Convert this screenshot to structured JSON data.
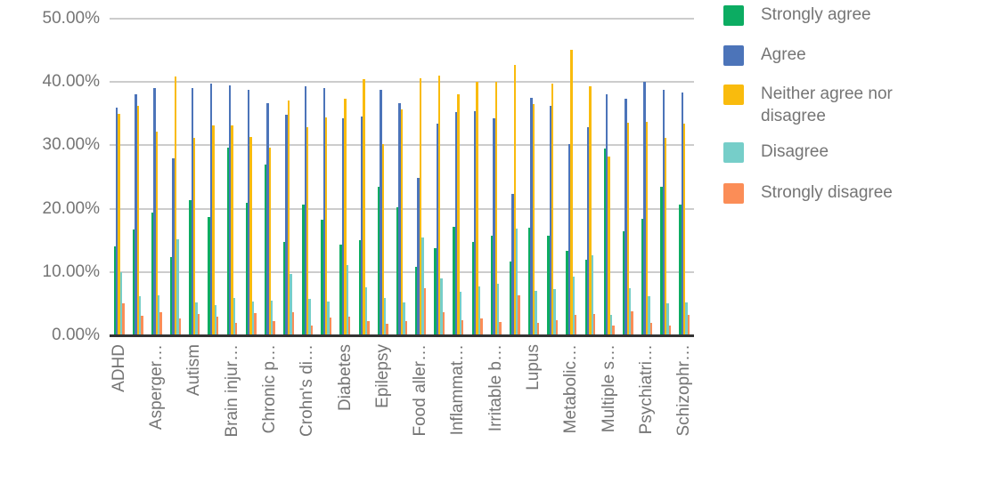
{
  "chart_data": {
    "type": "bar",
    "title": "",
    "legend_position": "right",
    "x_label_rotation": -90,
    "grid": true,
    "background_color": "#ffffff",
    "axis_text_color": "#757575",
    "gridline_color": "#cccccc",
    "baseline_color": "#333333",
    "y_axis": {
      "min": 0,
      "max": 50,
      "ticks": [
        "0.00%",
        "10.00%",
        "20.00%",
        "30.00%",
        "40.00%",
        "50.00%"
      ],
      "tick_values": [
        0,
        10,
        20,
        30,
        40,
        50
      ]
    },
    "series": [
      {
        "name": "Strongly agree",
        "color": "#0CAC62"
      },
      {
        "name": "Agree",
        "color": "#4C74B9"
      },
      {
        "name": "Neither agree nor disagree",
        "color": "#F9BB0D"
      },
      {
        "name": "Disagree",
        "color": "#76CEC9"
      },
      {
        "name": "Strongly disagree",
        "color": "#FB8D57"
      }
    ],
    "categories": [
      {
        "label": "ADHD",
        "values": [
          14.0,
          36.0,
          35.0,
          10.0,
          5.1
        ]
      },
      {
        "label": "",
        "values": [
          16.7,
          38.1,
          36.3,
          6.2,
          3.1
        ]
      },
      {
        "label": "Asperger…",
        "values": [
          19.4,
          39.0,
          32.1,
          6.3,
          3.6
        ]
      },
      {
        "label": "",
        "values": [
          12.3,
          28.0,
          40.9,
          15.2,
          2.7
        ]
      },
      {
        "label": "Autism",
        "values": [
          21.3,
          39.0,
          31.2,
          5.2,
          3.4
        ]
      },
      {
        "label": "",
        "values": [
          18.7,
          39.7,
          33.1,
          4.8,
          3.0
        ]
      },
      {
        "label": "Brain injur…",
        "values": [
          29.7,
          39.5,
          33.2,
          5.9,
          2.0
        ]
      },
      {
        "label": "",
        "values": [
          20.9,
          38.8,
          31.3,
          5.3,
          3.5
        ]
      },
      {
        "label": "Chronic p…",
        "values": [
          27.0,
          36.7,
          29.6,
          5.5,
          2.2
        ]
      },
      {
        "label": "",
        "values": [
          14.8,
          34.9,
          37.1,
          9.7,
          3.6
        ]
      },
      {
        "label": "Crohn's di…",
        "values": [
          20.7,
          39.3,
          32.9,
          5.8,
          1.5
        ]
      },
      {
        "label": "",
        "values": [
          18.2,
          39.1,
          34.4,
          5.4,
          2.8
        ]
      },
      {
        "label": "Diabetes",
        "values": [
          14.3,
          34.3,
          37.4,
          11.1,
          3.0
        ]
      },
      {
        "label": "",
        "values": [
          15.0,
          34.6,
          40.4,
          7.6,
          2.2
        ]
      },
      {
        "label": "Epilepsy",
        "values": [
          23.5,
          38.7,
          30.2,
          5.9,
          1.8
        ]
      },
      {
        "label": "",
        "values": [
          20.2,
          36.7,
          35.7,
          5.2,
          2.3
        ]
      },
      {
        "label": "Food aller…",
        "values": [
          10.8,
          24.8,
          40.6,
          15.5,
          7.5
        ]
      },
      {
        "label": "",
        "values": [
          13.8,
          33.4,
          41.0,
          9.0,
          3.6
        ]
      },
      {
        "label": "Inflammat…",
        "values": [
          17.2,
          35.3,
          38.0,
          6.9,
          2.4
        ]
      },
      {
        "label": "",
        "values": [
          14.7,
          35.4,
          40.0,
          7.7,
          2.7
        ]
      },
      {
        "label": "Irritable b…",
        "values": [
          15.8,
          34.3,
          40.0,
          8.1,
          2.1
        ]
      },
      {
        "label": "",
        "values": [
          11.7,
          22.4,
          42.7,
          16.8,
          6.3
        ]
      },
      {
        "label": "Lupus",
        "values": [
          17.0,
          37.5,
          36.5,
          7.0,
          2.0
        ]
      },
      {
        "label": "",
        "values": [
          15.7,
          36.2,
          39.7,
          7.3,
          2.4
        ]
      },
      {
        "label": "Metabolic…",
        "values": [
          13.3,
          30.2,
          45.1,
          9.3,
          3.3
        ]
      },
      {
        "label": "",
        "values": [
          11.9,
          32.8,
          39.3,
          12.7,
          3.4
        ]
      },
      {
        "label": "Multiple s…",
        "values": [
          29.5,
          38.0,
          28.3,
          3.2,
          1.6
        ]
      },
      {
        "label": "",
        "values": [
          16.5,
          37.4,
          33.6,
          7.4,
          3.8
        ]
      },
      {
        "label": "Psychiatri…",
        "values": [
          18.4,
          40.0,
          33.7,
          6.2,
          2.0
        ]
      },
      {
        "label": "",
        "values": [
          23.4,
          38.7,
          31.2,
          5.0,
          1.6
        ]
      },
      {
        "label": "Schizophr…",
        "values": [
          20.6,
          38.4,
          33.4,
          5.2,
          3.2
        ]
      }
    ]
  }
}
